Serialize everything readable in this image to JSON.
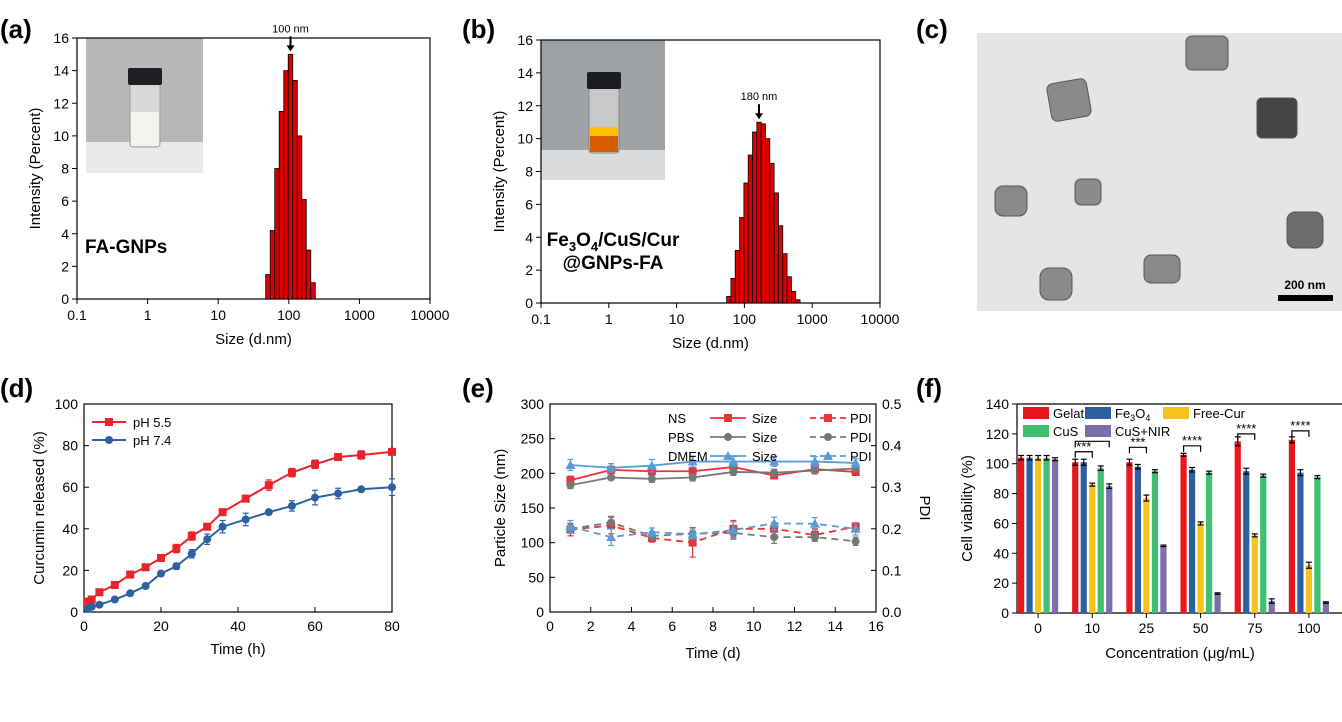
{
  "chart_data": [
    {
      "panel": "(a)",
      "type": "bar",
      "xscale": "log",
      "xlabel": "Size (d.nm)",
      "ylabel": "Intensity (Percent)",
      "xticks": [
        "0.1",
        "1",
        "10",
        "100",
        "1000",
        "10000"
      ],
      "xlim": [
        0.1,
        10000
      ],
      "ylim": [
        0,
        16
      ],
      "yticks": [
        "0",
        "2",
        "4",
        "6",
        "8",
        "10",
        "12",
        "14",
        "16"
      ],
      "annotation": "100 nm",
      "sample_label": "FA-GNPs",
      "bar_color": "#dd0000",
      "x": [
        50.7,
        58.8,
        68.1,
        78.8,
        91.3,
        105.7,
        122.4,
        141.8,
        164.2,
        190.1,
        220.2
      ],
      "values": [
        1.5,
        4.2,
        8.0,
        11.5,
        14.0,
        15.0,
        13.4,
        10.0,
        6.1,
        3.0,
        1.0
      ]
    },
    {
      "panel": "(b)",
      "type": "bar",
      "xscale": "log",
      "xlabel": "Size (d.nm)",
      "ylabel": "Intensity (Percent)",
      "xticks": [
        "0.1",
        "1",
        "10",
        "100",
        "1000",
        "10000"
      ],
      "xlim": [
        0.1,
        10000
      ],
      "ylim": [
        0,
        16
      ],
      "yticks": [
        "0",
        "2",
        "4",
        "6",
        "8",
        "10",
        "12",
        "14",
        "16"
      ],
      "annotation": "180 nm",
      "sample_label_line1": "Fe3O4/CuS/Cur",
      "sample_label_line2": "@GNPs-FA",
      "bar_color": "#dd0000",
      "x": [
        58.8,
        68.1,
        78.8,
        91.3,
        105.7,
        122.4,
        141.8,
        164.2,
        190.1,
        220.2,
        255.0,
        295.3,
        342.0,
        396.1,
        458.7,
        531.2,
        615.1
      ],
      "values": [
        0.4,
        1.5,
        3.2,
        5.2,
        7.3,
        9.0,
        10.4,
        11.0,
        10.9,
        10.0,
        8.5,
        6.7,
        4.7,
        3.0,
        1.6,
        0.7,
        0.2
      ]
    },
    {
      "panel": "(d)",
      "type": "line",
      "xlabel": "Time (h)",
      "ylabel": "Curcumin released (%)",
      "xlim": [
        0,
        80
      ],
      "ylim": [
        0,
        100
      ],
      "xticks": [
        "0",
        "20",
        "40",
        "60",
        "80"
      ],
      "yticks": [
        "0",
        "20",
        "40",
        "60",
        "80",
        "100"
      ],
      "legend_position": "top-left",
      "series": [
        {
          "name": "pH 5.5",
          "color": "#e8232a",
          "marker": "square",
          "x": [
            1,
            2,
            4,
            8,
            12,
            16,
            20,
            24,
            28,
            32,
            36,
            42,
            48,
            54,
            60,
            66,
            72,
            80
          ],
          "y": [
            5,
            6,
            9.5,
            13,
            18,
            21.5,
            26,
            30.5,
            36.5,
            41,
            48,
            54.5,
            61,
            67,
            71,
            74.5,
            75.5,
            77
          ],
          "err": [
            1,
            1,
            1.5,
            1.5,
            1.5,
            1.5,
            1.5,
            2,
            2,
            1.5,
            1.5,
            1.5,
            2.5,
            2,
            2,
            1.5,
            2,
            1.5
          ]
        },
        {
          "name": "pH 7.4",
          "color": "#2e5fa0",
          "marker": "circle",
          "x": [
            1,
            2,
            4,
            8,
            12,
            16,
            20,
            24,
            28,
            32,
            36,
            42,
            48,
            54,
            60,
            66,
            72,
            80
          ],
          "y": [
            1.5,
            2.5,
            3.5,
            6,
            9,
            12.5,
            18.5,
            22,
            28,
            35,
            41,
            44.5,
            48,
            51,
            55,
            57,
            59,
            60
          ],
          "err": [
            0.5,
            0.5,
            0.5,
            0.5,
            0.5,
            1,
            1,
            1.5,
            2,
            2.5,
            3,
            3,
            1,
            2.5,
            3.5,
            2.5,
            1,
            4
          ]
        }
      ]
    },
    {
      "panel": "(e)",
      "type": "line",
      "xlabel": "Time (d)",
      "ylabel": "Particle Size (nm)",
      "y2label": "PDI",
      "xlim": [
        0,
        16
      ],
      "ylim": [
        0,
        300
      ],
      "y2lim": [
        0.0,
        0.5
      ],
      "xticks": [
        "0",
        "2",
        "4",
        "6",
        "8",
        "10",
        "12",
        "14",
        "16"
      ],
      "yticks": [
        "0",
        "50",
        "100",
        "150",
        "200",
        "250",
        "300"
      ],
      "y2ticks": [
        "0.0",
        "0.1",
        "0.2",
        "0.3",
        "0.4",
        "0.5"
      ],
      "legend_position": "top-right",
      "x": [
        1,
        3,
        5,
        7,
        9,
        11,
        13,
        15
      ],
      "series": [
        {
          "group": "NS",
          "name": "Size",
          "axis": "left",
          "color": "#e8333a",
          "dash": false,
          "marker": "square",
          "y": [
            190,
            205,
            203,
            203,
            209,
            197,
            206,
            202
          ],
          "err": [
            6,
            5,
            5,
            5,
            5,
            5,
            5,
            5
          ]
        },
        {
          "group": "PBS",
          "name": "Size",
          "axis": "left",
          "color": "#777777",
          "dash": false,
          "marker": "circle",
          "y": [
            183,
            194,
            192,
            194,
            202,
            201,
            204,
            207
          ],
          "err": [
            5,
            3,
            5,
            5,
            5,
            5,
            5,
            3
          ]
        },
        {
          "group": "DMEM",
          "name": "Size",
          "axis": "left",
          "color": "#5b9bd5",
          "dash": false,
          "marker": "triangle",
          "y": [
            212,
            208,
            211,
            217,
            217,
            217,
            217,
            215
          ],
          "err": [
            8,
            6,
            9,
            8,
            7,
            7,
            7,
            6
          ]
        },
        {
          "group": "NS",
          "name": "PDI",
          "axis": "right",
          "color": "#e8333a",
          "dash": true,
          "marker": "square",
          "y": [
            0.198,
            0.208,
            0.178,
            0.167,
            0.2,
            0.2,
            0.185,
            0.205
          ],
          "err": [
            0.015,
            0.02,
            0.01,
            0.035,
            0.02,
            0.015,
            0.015,
            0.01
          ]
        },
        {
          "group": "PBS",
          "name": "PDI",
          "axis": "right",
          "color": "#777777",
          "dash": true,
          "marker": "circle",
          "y": [
            0.2,
            0.215,
            0.183,
            0.188,
            0.19,
            0.18,
            0.18,
            0.17
          ],
          "err": [
            0.01,
            0.015,
            0.01,
            0.015,
            0.015,
            0.015,
            0.01,
            0.01
          ]
        },
        {
          "group": "DMEM",
          "name": "PDI",
          "axis": "right",
          "color": "#5b9bd5",
          "dash": true,
          "marker": "triangle",
          "y": [
            0.205,
            0.18,
            0.192,
            0.187,
            0.197,
            0.213,
            0.212,
            0.2
          ],
          "err": [
            0.015,
            0.02,
            0.01,
            0.01,
            0.02,
            0.015,
            0.015,
            0.015
          ]
        }
      ]
    },
    {
      "panel": "(f)",
      "type": "bar",
      "xlabel": "Concentration (μg/mL)",
      "ylabel": "Cell viability (%)",
      "ylim": [
        0,
        140
      ],
      "yticks": [
        "0",
        "20",
        "40",
        "60",
        "80",
        "100",
        "120",
        "140"
      ],
      "categories": [
        "0",
        "10",
        "25",
        "50",
        "75",
        "100"
      ],
      "series": [
        {
          "name": "Gelatin",
          "color": "#e8161f",
          "values": [
            104,
            101,
            101,
            106,
            115,
            116
          ],
          "err": [
            1.5,
            2,
            2,
            1,
            3,
            2
          ]
        },
        {
          "name": "Fe3O4",
          "color": "#2d5f9e",
          "values": [
            104,
            101,
            98,
            96,
            95,
            94
          ],
          "err": [
            1.5,
            2,
            1.5,
            1.5,
            2,
            2
          ]
        },
        {
          "name": "Free-Cur",
          "color": "#f7c21b",
          "values": [
            104,
            86,
            77,
            60,
            52,
            32
          ],
          "err": [
            1.5,
            1,
            2,
            1,
            1,
            2
          ]
        },
        {
          "name": "CuS",
          "color": "#3fbf72",
          "values": [
            104,
            97,
            95,
            94,
            92,
            91
          ],
          "err": [
            1.5,
            1.5,
            1,
            1,
            1,
            1
          ]
        },
        {
          "name": "CuS+NIR",
          "color": "#7a6fa8",
          "values": [
            103,
            85,
            45,
            13,
            8,
            7
          ],
          "err": [
            1,
            1.5,
            0.5,
            0.5,
            1.5,
            0.5
          ]
        }
      ],
      "significance": [
        {
          "category": "10",
          "label": "***"
        },
        {
          "category": "10",
          "label": "***"
        },
        {
          "category": "25",
          "label": "***"
        },
        {
          "category": "50",
          "label": "****"
        },
        {
          "category": "75",
          "label": "****"
        },
        {
          "category": "100",
          "label": "****"
        }
      ]
    }
  ],
  "panel_c": {
    "label": "(c)",
    "scale_bar": "200 nm"
  },
  "labels": {
    "a": "(a)",
    "b": "(b)",
    "c": "(c)",
    "d": "(d)",
    "e": "(e)",
    "f": "(f)",
    "legend_fe3o4_base": "Fe",
    "legend_fe3o4_sub1": "3",
    "legend_fe3o4_mid": "O",
    "legend_fe3o4_sub2": "4",
    "sample_b_base1": "Fe",
    "sample_b_sub1": "3",
    "sample_b_base2": "O",
    "sample_b_sub2": "4",
    "sample_b_rest": "/CuS/Cur"
  }
}
